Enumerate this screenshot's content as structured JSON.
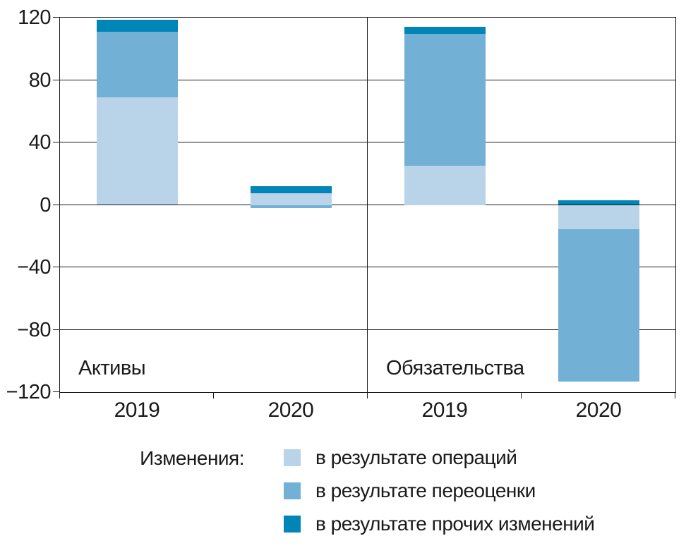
{
  "chart_data": {
    "type": "bar",
    "stacked": true,
    "title": "",
    "ylim": [
      -120,
      120
    ],
    "ytick_values": [
      120,
      80,
      40,
      0,
      -40,
      -80,
      -120
    ],
    "ytick_labels": [
      "120",
      "80",
      "40",
      "0",
      "−40",
      "−80",
      "−120"
    ],
    "gridline_values": [
      80,
      40,
      0,
      -40,
      -80
    ],
    "grid": true,
    "panels": [
      {
        "label": "Активы",
        "categories": [
          "2019",
          "2020"
        ]
      },
      {
        "label": "Обязательства",
        "categories": [
          "2019",
          "2020"
        ]
      }
    ],
    "categories": [
      "2019",
      "2020",
      "2019",
      "2020"
    ],
    "series": [
      {
        "name": "в результате операций",
        "color": "#b9d3e9",
        "values": [
          69,
          7.5,
          25,
          -15.5
        ]
      },
      {
        "name": "в результате переоценки",
        "color": "#72b1d5",
        "values": [
          42,
          -2,
          84.5,
          -97.5
        ]
      },
      {
        "name": "в результате прочих изменений",
        "color": "#0085b8",
        "values": [
          7.5,
          4.5,
          4.5,
          3
        ]
      }
    ],
    "legend_title": "Изменения:",
    "legend_position": "bottom",
    "line_color": "#1a1a1a",
    "background_color": "#ffffff"
  }
}
